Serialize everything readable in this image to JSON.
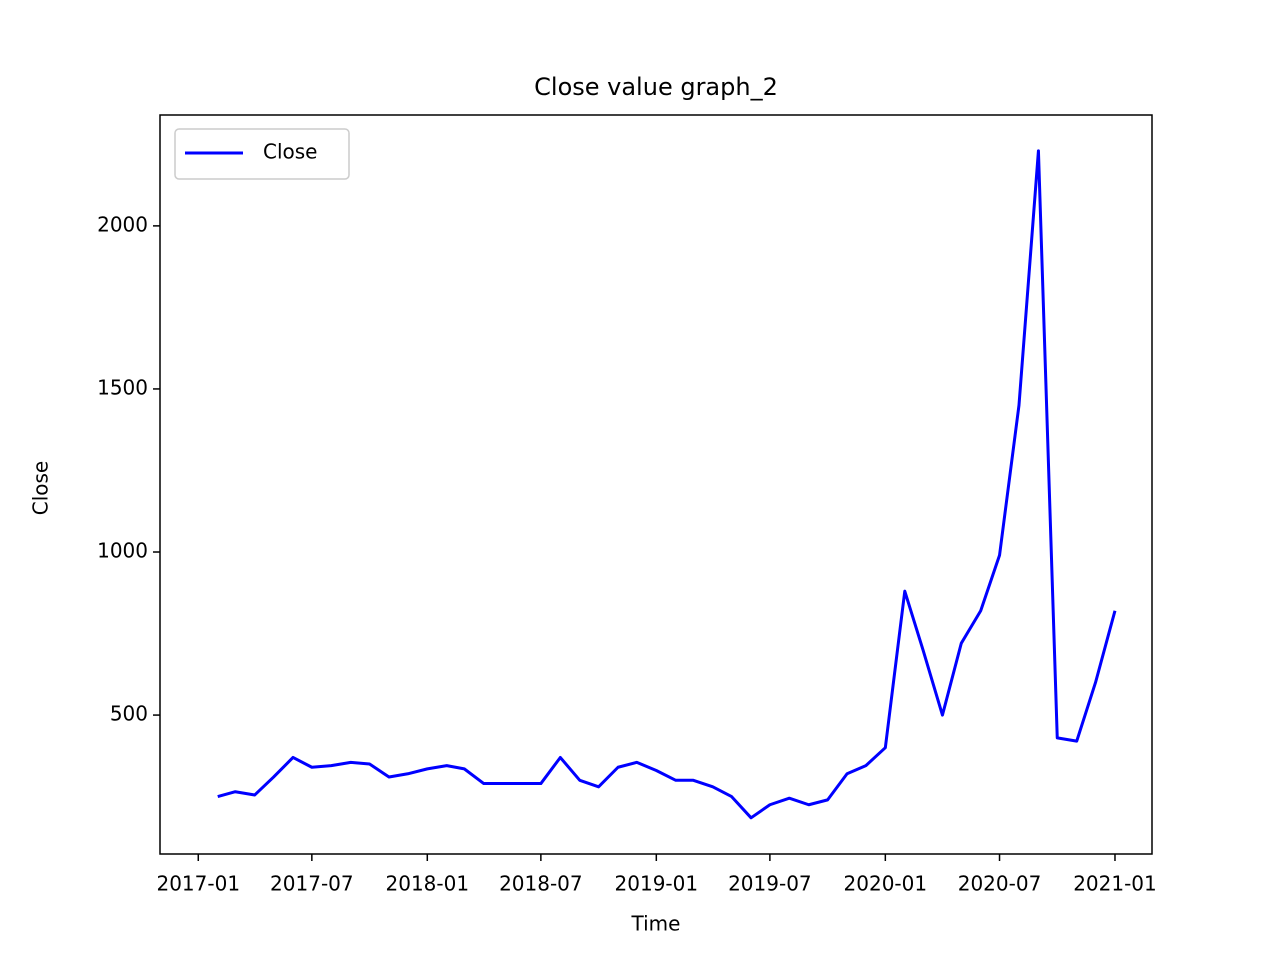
{
  "chart_data": {
    "type": "line",
    "title": "Close value graph_2",
    "x_label": "Time",
    "y_label": "Close",
    "x": [
      "2017-02",
      "2017-03",
      "2017-04",
      "2017-05",
      "2017-06",
      "2017-07",
      "2017-08",
      "2017-09",
      "2017-10",
      "2017-11",
      "2017-12",
      "2018-01",
      "2018-02",
      "2018-03",
      "2018-04",
      "2018-05",
      "2018-06",
      "2018-07",
      "2018-08",
      "2018-09",
      "2018-10",
      "2018-11",
      "2018-12",
      "2019-01",
      "2019-02",
      "2019-03",
      "2019-04",
      "2019-05",
      "2019-06",
      "2019-07",
      "2019-08",
      "2019-09",
      "2019-10",
      "2019-11",
      "2019-12",
      "2020-01",
      "2020-02",
      "2020-03",
      "2020-04",
      "2020-05",
      "2020-06",
      "2020-07",
      "2020-08",
      "2020-09",
      "2020-10",
      "2020-11",
      "2020-12",
      "2021-01"
    ],
    "series": [
      {
        "name": "Close",
        "color": "#0000ff",
        "values": [
          250,
          265,
          255,
          310,
          370,
          340,
          345,
          355,
          350,
          310,
          320,
          335,
          345,
          335,
          290,
          290,
          290,
          290,
          370,
          300,
          280,
          340,
          355,
          330,
          300,
          300,
          280,
          250,
          185,
          225,
          245,
          225,
          240,
          320,
          345,
          400,
          880,
          700,
          500,
          720,
          820,
          990,
          1450,
          2230,
          430,
          420,
          600,
          820
        ]
      }
    ],
    "xlim": [
      "2016-11",
      "2021-03"
    ],
    "xticks": [
      "2017-01",
      "2017-07",
      "2018-01",
      "2018-07",
      "2019-01",
      "2019-07",
      "2020-01",
      "2020-07",
      "2021-01"
    ],
    "ylim": [
      74,
      2340
    ],
    "yticks": [
      500,
      1000,
      1500,
      2000
    ],
    "legend": "upper left"
  }
}
